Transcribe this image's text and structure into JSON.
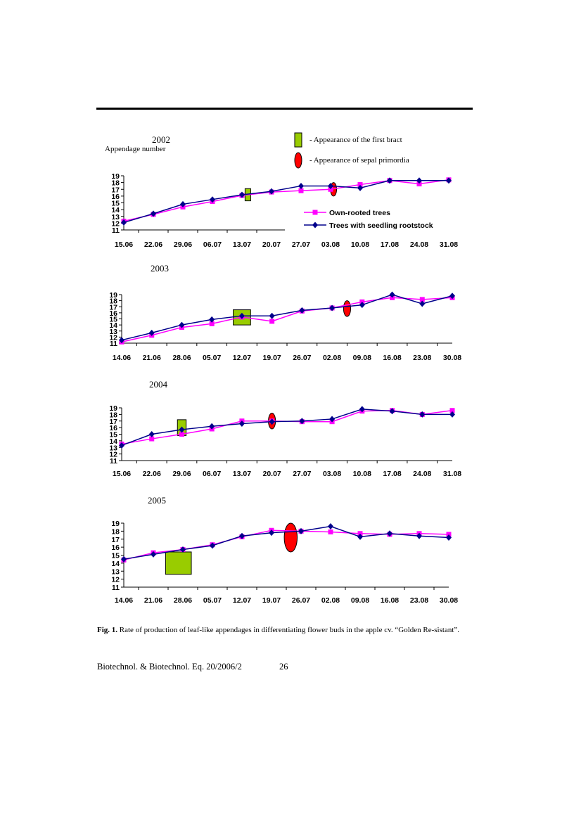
{
  "colors": {
    "own_rooted": "#ff00ff",
    "seedling": "#00008b",
    "bract": "#99cc00",
    "sepal": "#ff0000"
  },
  "ylabel": "Appendage number",
  "legend_markers": {
    "bract": "- Appearance of the first bract",
    "sepal": "- Appearance of sepal primordia"
  },
  "caption": {
    "prefix": "Fig. 1.",
    "text": " Rate of production of leaf-like appendages in  differentiating flower buds in the apple cv. “Golden Re-sistant”."
  },
  "footer": {
    "journal": "Biotechnol. & Biotechnol. Eq. 20/2006/2",
    "page": "26"
  },
  "chart_data": [
    {
      "type": "line",
      "title": "2002",
      "categories": [
        "15.06",
        "22.06",
        "29.06",
        "06.07",
        "13.07",
        "20.07",
        "27.07",
        "03.08",
        "10.08",
        "17.08",
        "24.08",
        "31.08"
      ],
      "ylim": [
        11,
        19
      ],
      "yticks": [
        11,
        12,
        13,
        14,
        15,
        16,
        17,
        18,
        19
      ],
      "series": [
        {
          "name": "Own-rooted trees",
          "marker": "square",
          "color": "#ff00ff",
          "values": [
            12.3,
            13.3,
            14.4,
            15.2,
            16.1,
            16.6,
            16.8,
            17.0,
            17.7,
            18.3,
            17.8,
            18.4
          ]
        },
        {
          "name": "Trees with seedling rootstock",
          "marker": "diamond",
          "color": "#00008b",
          "values": [
            12.1,
            13.4,
            14.8,
            15.5,
            16.2,
            16.7,
            17.5,
            17.5,
            17.2,
            18.3,
            18.3,
            18.3
          ]
        }
      ],
      "events": [
        {
          "type": "bract",
          "x": 4.2,
          "ylow": 15.3,
          "yhigh": 17.1
        },
        {
          "type": "sepal",
          "x": 7.1,
          "ycenter": 17.0,
          "ry": 1.0
        }
      ],
      "legend": "right"
    },
    {
      "type": "line",
      "title": "2003",
      "categories": [
        "14.06",
        "21.06",
        "28.06",
        "05.07",
        "12.07",
        "19.07",
        "26.07",
        "02.08",
        "09.08",
        "16.08",
        "23.08",
        "30.08"
      ],
      "ylim": [
        11,
        19
      ],
      "yticks": [
        11,
        12,
        13,
        14,
        15,
        16,
        17,
        18,
        19
      ],
      "series": [
        {
          "name": "Own-rooted trees",
          "marker": "square",
          "color": "#ff00ff",
          "values": [
            11.2,
            12.3,
            13.6,
            14.2,
            15.3,
            14.6,
            16.3,
            16.8,
            17.8,
            18.5,
            18.2,
            18.5
          ]
        },
        {
          "name": "Trees with seedling rootstock",
          "marker": "diamond",
          "color": "#00008b",
          "values": [
            11.5,
            12.7,
            14.0,
            14.9,
            15.5,
            15.5,
            16.4,
            16.8,
            17.3,
            19.0,
            17.5,
            18.8
          ]
        }
      ],
      "events": [
        {
          "type": "bract",
          "x": 4.0,
          "ylow": 14.0,
          "yhigh": 16.5
        },
        {
          "type": "sepal",
          "x": 7.5,
          "ycenter": 16.7,
          "ry": 1.3
        }
      ]
    },
    {
      "type": "line",
      "title": "2004",
      "categories": [
        "15.06",
        "22.06",
        "29.06",
        "06.07",
        "13.07",
        "20.07",
        "27.07",
        "03.08",
        "10.08",
        "17.08",
        "24.08",
        "31.08"
      ],
      "ylim": [
        11,
        19
      ],
      "yticks": [
        11,
        12,
        13,
        14,
        15,
        16,
        17,
        18,
        19
      ],
      "series": [
        {
          "name": "Own-rooted trees",
          "marker": "square",
          "color": "#ff00ff",
          "values": [
            13.5,
            14.3,
            15.0,
            15.8,
            17.0,
            17.0,
            16.9,
            16.9,
            18.5,
            18.6,
            18.0,
            18.6
          ]
        },
        {
          "name": "Trees with seedling rootstock",
          "marker": "diamond",
          "color": "#00008b",
          "values": [
            13.3,
            15.0,
            15.7,
            16.2,
            16.6,
            16.9,
            17.0,
            17.3,
            18.8,
            18.5,
            18.0,
            18.0
          ]
        }
      ],
      "events": [
        {
          "type": "bract",
          "x": 2.0,
          "ylow": 14.8,
          "yhigh": 17.2
        },
        {
          "type": "sepal",
          "x": 5.0,
          "ycenter": 17.0,
          "ry": 1.2
        }
      ]
    },
    {
      "type": "line",
      "title": "2005",
      "categories": [
        "14.06",
        "21.06",
        "28.06",
        "05.07",
        "12.07",
        "19.07",
        "26.07",
        "02.08",
        "09.08",
        "16.08",
        "23.08",
        "30.08"
      ],
      "ylim": [
        11,
        19
      ],
      "yticks": [
        11,
        12,
        13,
        14,
        15,
        16,
        17,
        18,
        19
      ],
      "series": [
        {
          "name": "Own-rooted trees",
          "marker": "square",
          "color": "#ff00ff",
          "values": [
            14.4,
            15.3,
            15.7,
            16.3,
            17.3,
            18.1,
            18.0,
            17.9,
            17.7,
            17.6,
            17.7,
            17.6
          ]
        },
        {
          "name": "Trees with seedling rootstock",
          "marker": "diamond",
          "color": "#00008b",
          "values": [
            14.5,
            15.1,
            15.7,
            16.2,
            17.4,
            17.8,
            18.0,
            18.6,
            17.3,
            17.7,
            17.4,
            17.2
          ]
        }
      ],
      "events": [
        {
          "type": "bract",
          "x": 1.85,
          "ylow": 12.6,
          "yhigh": 15.4
        },
        {
          "type": "sepal",
          "x": 5.65,
          "ycenter": 17.2,
          "ry": 1.8
        }
      ]
    }
  ]
}
